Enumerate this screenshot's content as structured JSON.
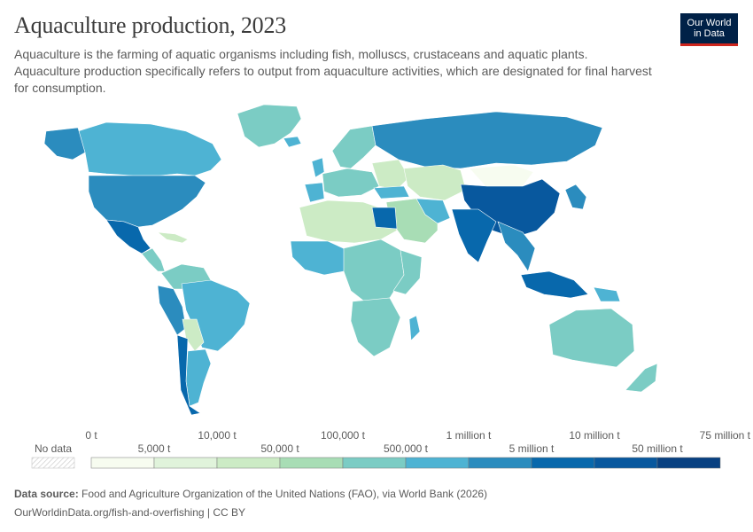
{
  "header": {
    "title": "Aquaculture production, 2023",
    "subtitle": "Aquaculture is the farming of aquatic organisms including fish, molluscs, crustaceans and aquatic plants. Aquaculture production specifically refers to output from aquaculture activities, which are designated for final harvest for consumption."
  },
  "logo": {
    "line1": "Our World",
    "line2": "in Data"
  },
  "legend": {
    "no_data_label": "No data",
    "top_labels": [
      "0 t",
      "10,000 t",
      "100,000 t",
      "1 million t",
      "10 million t",
      "75 million t"
    ],
    "bottom_labels": [
      "5,000 t",
      "50,000 t",
      "500,000 t",
      "5 million t",
      "50 million t"
    ],
    "colors": [
      "#f7fcf0",
      "#e0f3db",
      "#ccebc5",
      "#a8ddb5",
      "#7bccc4",
      "#4eb3d3",
      "#2b8cbe",
      "#0868ac",
      "#08589e",
      "#084081"
    ]
  },
  "footer": {
    "source_label": "Data source:",
    "source_text": "Food and Agriculture Organization of the United Nations (FAO), via World Bank (2026)",
    "url_text": "OurWorldinData.org/fish-and-overfishing | CC BY"
  }
}
